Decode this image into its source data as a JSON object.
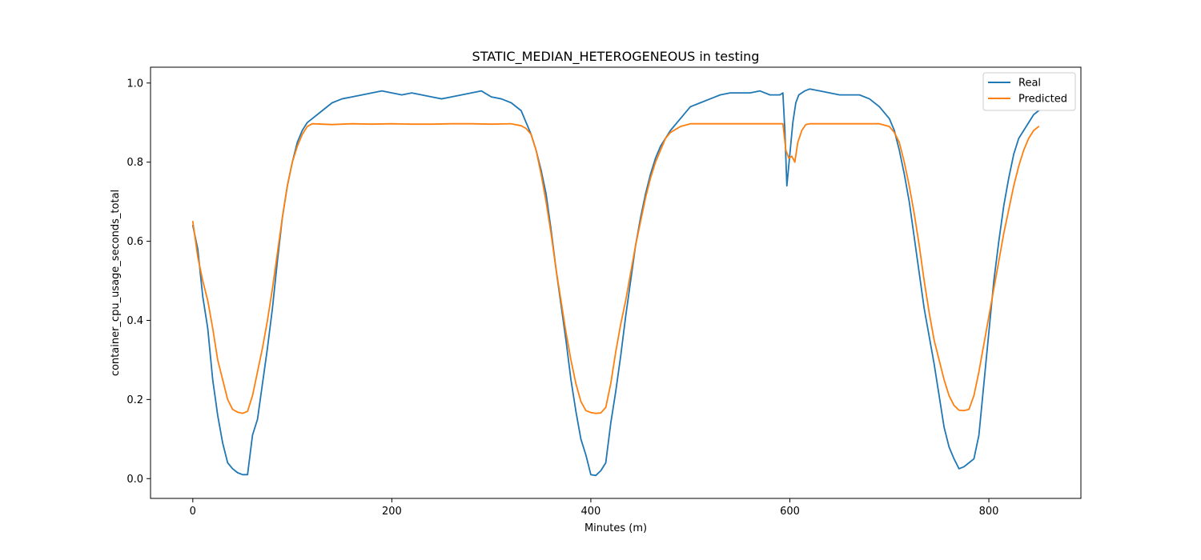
{
  "chart_data": {
    "type": "line",
    "title": "STATIC_MEDIAN_HETEROGENEOUS in testing",
    "xlabel": "Minutes (m)",
    "ylabel": "container_cpu_usage_seconds_total",
    "xlim": [
      -42.5,
      892.5
    ],
    "ylim": [
      -0.05,
      1.04
    ],
    "xticks": [
      0,
      200,
      400,
      600,
      800
    ],
    "yticks": [
      0.0,
      0.2,
      0.4,
      0.6,
      0.8,
      1.0
    ],
    "xtick_labels": [
      "0",
      "200",
      "400",
      "600",
      "800"
    ],
    "ytick_labels": [
      "0.0",
      "0.2",
      "0.4",
      "0.6",
      "0.8",
      "1.0"
    ],
    "grid": false,
    "legend_position": "top-right",
    "series": [
      {
        "name": "Real",
        "color": "#1f77b4",
        "x": [
          0,
          5,
          10,
          15,
          20,
          25,
          30,
          35,
          40,
          45,
          50,
          55,
          60,
          65,
          70,
          75,
          80,
          85,
          90,
          95,
          100,
          105,
          110,
          115,
          120,
          130,
          140,
          150,
          160,
          170,
          180,
          190,
          200,
          210,
          220,
          230,
          240,
          250,
          260,
          270,
          280,
          290,
          300,
          310,
          320,
          330,
          335,
          340,
          345,
          350,
          355,
          360,
          365,
          370,
          375,
          380,
          385,
          390,
          395,
          400,
          405,
          410,
          415,
          420,
          425,
          430,
          435,
          440,
          445,
          450,
          455,
          460,
          465,
          470,
          475,
          480,
          490,
          500,
          510,
          520,
          530,
          540,
          550,
          560,
          570,
          580,
          590,
          593,
          595,
          597,
          600,
          603,
          606,
          609,
          612,
          615,
          620,
          630,
          640,
          650,
          660,
          670,
          680,
          690,
          700,
          705,
          710,
          715,
          720,
          725,
          730,
          735,
          740,
          745,
          750,
          755,
          760,
          765,
          770,
          775,
          780,
          785,
          790,
          795,
          800,
          805,
          810,
          815,
          820,
          825,
          830,
          835,
          840,
          845,
          850
        ],
        "values": [
          0.64,
          0.58,
          0.46,
          0.38,
          0.25,
          0.16,
          0.09,
          0.04,
          0.025,
          0.015,
          0.01,
          0.01,
          0.11,
          0.15,
          0.24,
          0.33,
          0.43,
          0.55,
          0.66,
          0.74,
          0.8,
          0.85,
          0.88,
          0.9,
          0.91,
          0.93,
          0.95,
          0.96,
          0.965,
          0.97,
          0.975,
          0.98,
          0.975,
          0.97,
          0.975,
          0.97,
          0.965,
          0.96,
          0.965,
          0.97,
          0.975,
          0.98,
          0.965,
          0.96,
          0.95,
          0.93,
          0.9,
          0.87,
          0.83,
          0.78,
          0.72,
          0.63,
          0.53,
          0.44,
          0.35,
          0.25,
          0.17,
          0.1,
          0.06,
          0.01,
          0.008,
          0.02,
          0.04,
          0.14,
          0.22,
          0.31,
          0.41,
          0.5,
          0.59,
          0.66,
          0.72,
          0.77,
          0.81,
          0.84,
          0.86,
          0.88,
          0.91,
          0.94,
          0.95,
          0.96,
          0.97,
          0.975,
          0.975,
          0.975,
          0.98,
          0.97,
          0.97,
          0.975,
          0.88,
          0.74,
          0.82,
          0.9,
          0.95,
          0.97,
          0.975,
          0.98,
          0.985,
          0.98,
          0.975,
          0.97,
          0.97,
          0.97,
          0.96,
          0.94,
          0.91,
          0.88,
          0.83,
          0.77,
          0.7,
          0.61,
          0.52,
          0.43,
          0.36,
          0.29,
          0.21,
          0.13,
          0.08,
          0.05,
          0.025,
          0.03,
          0.04,
          0.05,
          0.11,
          0.24,
          0.37,
          0.5,
          0.6,
          0.69,
          0.76,
          0.82,
          0.86,
          0.88,
          0.9,
          0.92,
          0.93
        ]
      },
      {
        "name": "Predicted",
        "color": "#ff7f0e",
        "x": [
          0,
          5,
          10,
          15,
          20,
          25,
          30,
          35,
          40,
          45,
          50,
          55,
          60,
          65,
          70,
          75,
          80,
          85,
          90,
          95,
          100,
          105,
          110,
          115,
          120,
          130,
          140,
          160,
          180,
          200,
          220,
          240,
          260,
          280,
          300,
          320,
          330,
          335,
          340,
          345,
          350,
          355,
          360,
          365,
          370,
          375,
          380,
          385,
          390,
          395,
          400,
          405,
          410,
          415,
          420,
          425,
          430,
          435,
          440,
          445,
          450,
          455,
          460,
          465,
          470,
          475,
          480,
          490,
          500,
          520,
          540,
          560,
          580,
          593,
          596,
          599,
          602,
          605,
          608,
          612,
          616,
          620,
          640,
          660,
          680,
          690,
          700,
          705,
          710,
          715,
          720,
          725,
          730,
          735,
          740,
          745,
          750,
          755,
          760,
          765,
          770,
          775,
          780,
          785,
          790,
          795,
          800,
          805,
          810,
          815,
          820,
          825,
          830,
          835,
          840,
          845,
          850
        ],
        "values": [
          0.65,
          0.56,
          0.5,
          0.45,
          0.38,
          0.3,
          0.25,
          0.2,
          0.175,
          0.168,
          0.165,
          0.17,
          0.21,
          0.27,
          0.33,
          0.4,
          0.48,
          0.57,
          0.66,
          0.74,
          0.8,
          0.84,
          0.87,
          0.89,
          0.897,
          0.896,
          0.895,
          0.897,
          0.896,
          0.897,
          0.896,
          0.896,
          0.897,
          0.897,
          0.896,
          0.897,
          0.892,
          0.885,
          0.87,
          0.83,
          0.77,
          0.7,
          0.62,
          0.53,
          0.45,
          0.37,
          0.3,
          0.24,
          0.195,
          0.172,
          0.167,
          0.165,
          0.166,
          0.18,
          0.24,
          0.32,
          0.39,
          0.45,
          0.52,
          0.59,
          0.65,
          0.71,
          0.76,
          0.8,
          0.83,
          0.86,
          0.875,
          0.89,
          0.897,
          0.897,
          0.897,
          0.897,
          0.897,
          0.897,
          0.83,
          0.81,
          0.815,
          0.8,
          0.85,
          0.88,
          0.895,
          0.897,
          0.897,
          0.897,
          0.897,
          0.897,
          0.89,
          0.875,
          0.85,
          0.8,
          0.74,
          0.67,
          0.59,
          0.5,
          0.42,
          0.35,
          0.3,
          0.25,
          0.21,
          0.185,
          0.173,
          0.172,
          0.175,
          0.21,
          0.27,
          0.34,
          0.41,
          0.48,
          0.55,
          0.62,
          0.68,
          0.74,
          0.79,
          0.83,
          0.86,
          0.88,
          0.89
        ]
      }
    ]
  }
}
